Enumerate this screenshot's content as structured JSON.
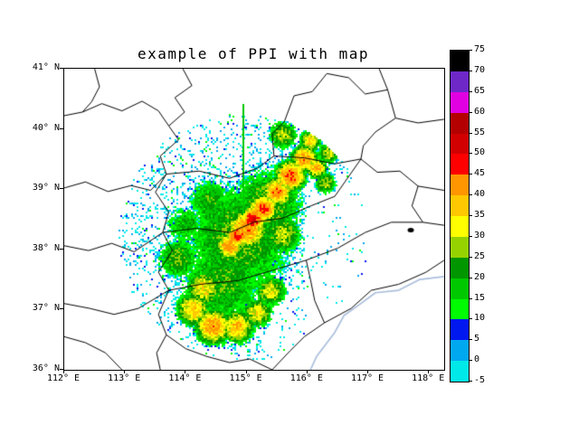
{
  "chart_data": {
    "type": "radar_ppi_map",
    "title": "example of PPI with map",
    "xlim": [
      112,
      118.25
    ],
    "ylim": [
      36,
      41
    ],
    "grid": false,
    "x_tick_values": [
      112,
      113,
      114,
      115,
      116,
      117,
      118
    ],
    "x_tick_labels": [
      "112° E",
      "113° E",
      "114° E",
      "115° E",
      "116° E",
      "117° E",
      "118° E"
    ],
    "y_tick_values": [
      36,
      37,
      38,
      39,
      40,
      41
    ],
    "y_tick_labels": [
      "36° N",
      "37° N",
      "38° N",
      "39° N",
      "40° N",
      "41° N"
    ],
    "colorbar": {
      "levels": [
        -5,
        0,
        5,
        10,
        15,
        20,
        25,
        30,
        35,
        40,
        45,
        50,
        55,
        60,
        65,
        70,
        75
      ],
      "tick_labels": [
        "-5",
        "0",
        "5",
        "10",
        "15",
        "20",
        "25",
        "30",
        "35",
        "40",
        "45",
        "50",
        "55",
        "60",
        "65",
        "70",
        "75"
      ],
      "colors": [
        "#00E8E8",
        "#00A8F0",
        "#0018F0",
        "#00FC00",
        "#00C800",
        "#009600",
        "#96D200",
        "#FFFF00",
        "#FFC800",
        "#FF9600",
        "#FF0000",
        "#D20000",
        "#B40000",
        "#E100E1",
        "#6E28C8",
        "#000000"
      ]
    },
    "radar": {
      "center": [
        114.95,
        38.2
      ],
      "radius_deg": 2.05,
      "spike": {
        "lon": 114.95,
        "lat_from": 38.6,
        "lat_to": 40.42,
        "color": "#00C800"
      },
      "cores": [
        [
          114.88,
          38.2,
          0.95,
          25
        ],
        [
          114.6,
          37.45,
          0.75,
          23
        ],
        [
          115.35,
          38.75,
          0.6,
          26
        ],
        [
          115.0,
          38.33,
          0.3,
          42
        ],
        [
          115.1,
          38.5,
          0.16,
          52
        ],
        [
          114.85,
          38.22,
          0.14,
          50
        ],
        [
          114.72,
          38.05,
          0.18,
          44
        ],
        [
          115.28,
          38.68,
          0.2,
          46
        ],
        [
          115.5,
          38.95,
          0.22,
          42
        ],
        [
          115.72,
          39.22,
          0.22,
          45
        ],
        [
          115.95,
          39.5,
          0.2,
          42
        ],
        [
          116.05,
          39.8,
          0.16,
          36
        ],
        [
          115.6,
          39.9,
          0.22,
          30
        ],
        [
          116.15,
          39.35,
          0.15,
          40
        ],
        [
          114.3,
          37.35,
          0.28,
          34
        ],
        [
          114.12,
          37.0,
          0.25,
          37
        ],
        [
          114.45,
          36.72,
          0.26,
          42
        ],
        [
          114.85,
          36.72,
          0.25,
          38
        ],
        [
          115.18,
          36.95,
          0.22,
          34
        ],
        [
          115.4,
          37.3,
          0.24,
          32
        ],
        [
          113.88,
          37.85,
          0.35,
          25
        ],
        [
          115.6,
          38.25,
          0.3,
          30
        ],
        [
          116.3,
          39.1,
          0.18,
          28
        ],
        [
          116.35,
          39.6,
          0.18,
          30
        ],
        [
          114.4,
          38.8,
          0.4,
          22
        ],
        [
          114.0,
          38.4,
          0.35,
          20
        ]
      ]
    },
    "map": {
      "boundary_color": "#000000",
      "river_color": "#A9BEDB",
      "lake": [
        117.7,
        38.32
      ],
      "boundaries": [
        [
          [
            113.95,
            41.0
          ],
          [
            114.1,
            40.72
          ],
          [
            113.82,
            40.52
          ],
          [
            113.98,
            40.28
          ],
          [
            113.72,
            40.05
          ],
          [
            113.88,
            39.82
          ],
          [
            113.58,
            39.55
          ],
          [
            113.68,
            39.25
          ],
          [
            113.5,
            38.95
          ],
          [
            113.72,
            38.62
          ],
          [
            113.62,
            38.28
          ],
          [
            113.78,
            37.98
          ],
          [
            113.55,
            37.62
          ],
          [
            113.72,
            37.32
          ],
          [
            113.55,
            36.92
          ],
          [
            113.68,
            36.58
          ],
          [
            113.52,
            36.28
          ],
          [
            113.58,
            36.0
          ]
        ],
        [
          [
            112.0,
            40.22
          ],
          [
            112.3,
            40.28
          ],
          [
            112.62,
            40.42
          ],
          [
            112.95,
            40.3
          ],
          [
            113.28,
            40.46
          ],
          [
            113.55,
            40.3
          ],
          [
            113.72,
            40.05
          ]
        ],
        [
          [
            112.5,
            41.0
          ],
          [
            112.58,
            40.7
          ],
          [
            112.45,
            40.45
          ],
          [
            112.3,
            40.28
          ]
        ],
        [
          [
            112.0,
            39.02
          ],
          [
            112.35,
            39.12
          ],
          [
            112.72,
            38.96
          ],
          [
            113.1,
            39.06
          ],
          [
            113.42,
            38.98
          ],
          [
            113.68,
            39.25
          ]
        ],
        [
          [
            112.0,
            38.06
          ],
          [
            112.4,
            37.98
          ],
          [
            112.78,
            38.1
          ],
          [
            113.15,
            37.96
          ],
          [
            113.62,
            38.28
          ]
        ],
        [
          [
            112.0,
            37.1
          ],
          [
            112.42,
            37.02
          ],
          [
            112.82,
            36.92
          ],
          [
            113.22,
            37.02
          ],
          [
            113.72,
            37.32
          ]
        ],
        [
          [
            112.0,
            36.55
          ],
          [
            112.35,
            36.45
          ],
          [
            112.68,
            36.28
          ],
          [
            112.95,
            36.0
          ]
        ],
        [
          [
            115.45,
            39.55
          ],
          [
            115.42,
            39.92
          ],
          [
            115.62,
            40.12
          ],
          [
            115.78,
            40.55
          ],
          [
            116.08,
            40.62
          ],
          [
            116.32,
            40.92
          ],
          [
            116.68,
            40.85
          ],
          [
            116.95,
            40.58
          ],
          [
            117.32,
            40.65
          ],
          [
            117.45,
            40.18
          ],
          [
            117.12,
            39.95
          ],
          [
            116.92,
            39.72
          ],
          [
            116.88,
            39.5
          ],
          [
            116.45,
            39.42
          ],
          [
            115.95,
            39.52
          ],
          [
            115.45,
            39.55
          ]
        ],
        [
          [
            117.18,
            41.0
          ],
          [
            117.32,
            40.65
          ]
        ],
        [
          [
            117.45,
            40.18
          ],
          [
            117.82,
            40.1
          ],
          [
            118.25,
            40.16
          ]
        ],
        [
          [
            116.88,
            39.5
          ],
          [
            117.15,
            39.28
          ],
          [
            117.52,
            39.3
          ],
          [
            117.82,
            39.05
          ],
          [
            118.25,
            38.98
          ]
        ],
        [
          [
            117.82,
            39.05
          ],
          [
            117.72,
            38.72
          ],
          [
            117.9,
            38.45
          ],
          [
            118.25,
            38.4
          ]
        ],
        [
          [
            113.68,
            36.58
          ],
          [
            114.0,
            36.35
          ],
          [
            114.35,
            36.22
          ],
          [
            114.72,
            36.12
          ],
          [
            115.05,
            36.18
          ],
          [
            115.42,
            36.0
          ]
        ],
        [
          [
            115.42,
            36.0
          ],
          [
            115.72,
            36.32
          ],
          [
            115.95,
            36.55
          ],
          [
            116.28,
            36.78
          ],
          [
            116.72,
            37.02
          ],
          [
            117.05,
            37.32
          ],
          [
            117.5,
            37.42
          ],
          [
            117.95,
            37.62
          ],
          [
            118.25,
            37.82
          ]
        ],
        [
          [
            113.72,
            37.32
          ],
          [
            114.25,
            37.42
          ],
          [
            114.85,
            37.48
          ],
          [
            115.42,
            37.65
          ],
          [
            115.98,
            37.82
          ]
        ],
        [
          [
            115.98,
            37.82
          ],
          [
            116.5,
            38.02
          ],
          [
            116.95,
            38.28
          ],
          [
            117.38,
            38.45
          ],
          [
            117.9,
            38.45
          ]
        ],
        [
          [
            116.28,
            36.78
          ],
          [
            116.12,
            37.15
          ],
          [
            116.05,
            37.5
          ],
          [
            115.98,
            37.82
          ]
        ],
        [
          [
            113.68,
            39.25
          ],
          [
            114.22,
            39.3
          ],
          [
            114.72,
            39.18
          ],
          [
            115.18,
            39.35
          ],
          [
            115.45,
            39.55
          ]
        ],
        [
          [
            113.62,
            38.28
          ],
          [
            114.18,
            38.35
          ],
          [
            114.72,
            38.28
          ],
          [
            115.12,
            38.45
          ]
        ],
        [
          [
            115.12,
            38.45
          ],
          [
            115.6,
            38.52
          ],
          [
            116.05,
            38.72
          ],
          [
            116.45,
            38.88
          ],
          [
            116.88,
            39.5
          ]
        ]
      ],
      "river": [
        [
          118.25,
          37.55
        ],
        [
          117.85,
          37.5
        ],
        [
          117.5,
          37.32
        ],
        [
          117.12,
          37.28
        ],
        [
          116.85,
          37.08
        ],
        [
          116.6,
          36.9
        ],
        [
          116.45,
          36.62
        ],
        [
          116.3,
          36.42
        ],
        [
          116.15,
          36.22
        ],
        [
          116.05,
          36.0
        ]
      ]
    }
  }
}
